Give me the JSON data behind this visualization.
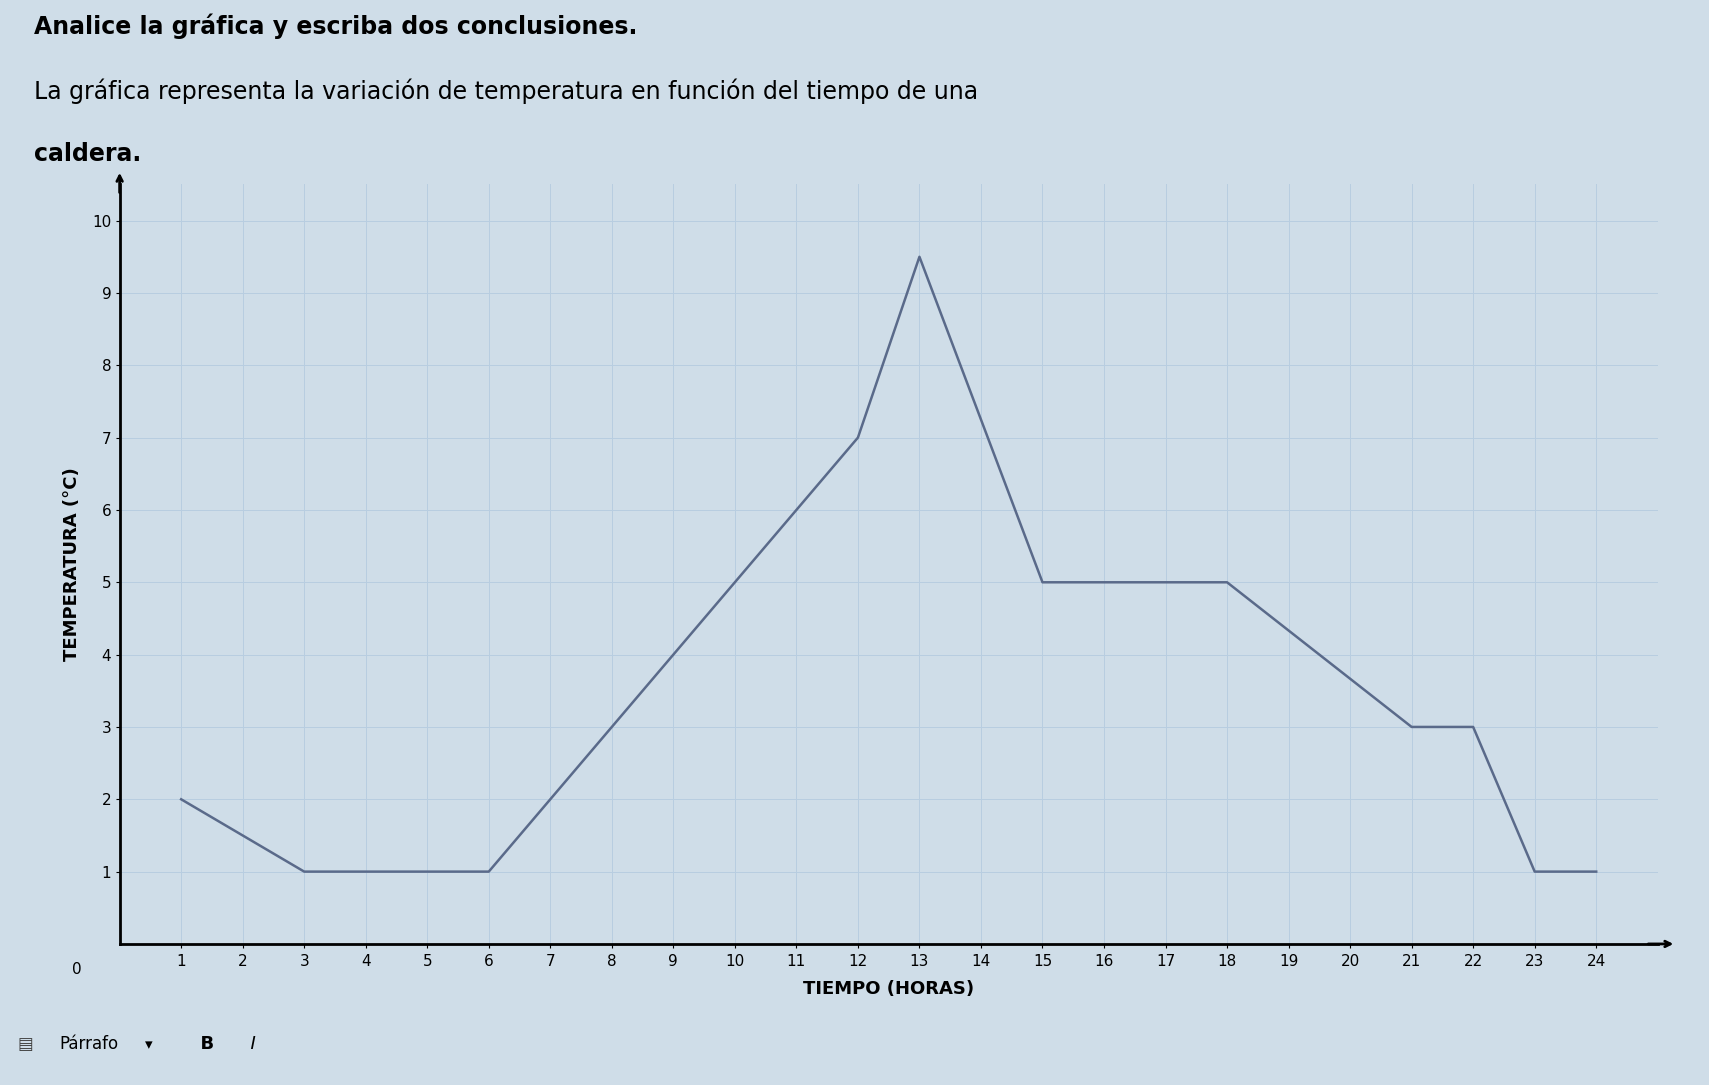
{
  "title_bold": "Analice la gráfica y escriba dos conclusiones.",
  "subtitle_line1": "La gráfica representa la variación de temperatura en función del tiempo de una",
  "subtitle_line2": "caldera.",
  "xlabel": "TIEMPO (HORAS)",
  "ylabel": "TEMPERATURA (°C)",
  "x_data": [
    1,
    3,
    6,
    8,
    12,
    13,
    15,
    18,
    21,
    22,
    23,
    24
  ],
  "y_data": [
    2,
    1,
    1,
    3,
    7,
    9.5,
    5,
    5,
    3,
    3,
    1,
    1
  ],
  "xlim": [
    0,
    25
  ],
  "ylim": [
    0,
    10.5
  ],
  "xticks": [
    1,
    2,
    3,
    4,
    5,
    6,
    7,
    8,
    9,
    10,
    11,
    12,
    13,
    14,
    15,
    16,
    17,
    18,
    19,
    20,
    21,
    22,
    23,
    24
  ],
  "yticks": [
    1,
    2,
    3,
    4,
    5,
    6,
    7,
    8,
    9,
    10
  ],
  "line_color": "#5a6a8a",
  "line_width": 1.8,
  "grid_color": "#b8cde0",
  "background_color": "#cfdde8",
  "title_fontsize": 17,
  "subtitle_fontsize": 17,
  "axis_label_fontsize": 13,
  "tick_fontsize": 11,
  "fig_bg_color": "#cfdde8",
  "bottom_bar_color": "#c8c8c8",
  "bottom_bar_text": "Párrafo",
  "text_area_bg": "#cfdde8"
}
